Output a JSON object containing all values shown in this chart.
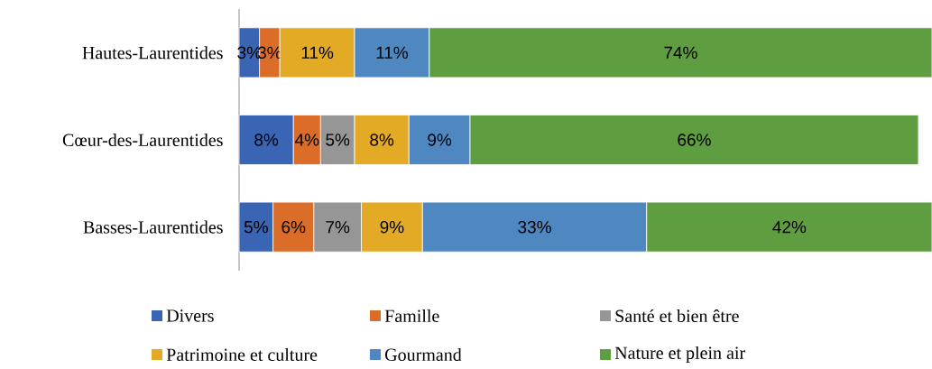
{
  "chart_data": {
    "type": "bar",
    "orientation": "horizontal",
    "stacked": true,
    "legend": "bottom",
    "categories": [
      "Hautes-Laurentides",
      "Cœur-des-Laurentides",
      "Basses-Laurentides"
    ],
    "series": [
      {
        "name": "Divers",
        "color": "#3a64b4",
        "values": [
          3,
          8,
          5
        ],
        "value_labels": [
          "3%",
          "8%",
          "5%"
        ]
      },
      {
        "name": "Famille",
        "color": "#db6d28",
        "values": [
          3,
          4,
          6
        ],
        "value_labels": [
          "3%",
          "4%",
          "6%"
        ]
      },
      {
        "name": "Santé et bien être",
        "color": "#969696",
        "values": [
          null,
          5,
          7
        ],
        "value_labels": [
          null,
          "5%",
          "7%"
        ]
      },
      {
        "name": "Patrimoine et culture",
        "color": "#e3aa26",
        "values": [
          11,
          8,
          9
        ],
        "value_labels": [
          "11%",
          "8%",
          "9%"
        ]
      },
      {
        "name": "Gourmand",
        "color": "#4f88c0",
        "values": [
          11,
          9,
          33
        ],
        "value_labels": [
          "11%",
          "9%",
          "33%"
        ]
      },
      {
        "name": "Nature et plein air",
        "color": "#5f9d41",
        "values": [
          74,
          66,
          42
        ],
        "value_labels": [
          "74%",
          "66%",
          "42%"
        ]
      }
    ]
  }
}
